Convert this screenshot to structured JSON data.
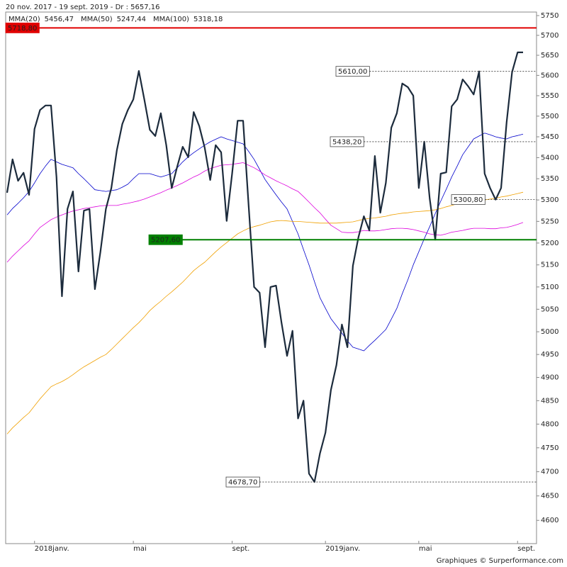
{
  "chart_data": {
    "type": "line",
    "title": "20 nov. 2017 - 19 sept. 2019 - Dr : 5657,16",
    "footer": "Graphiques © Surperformance.com",
    "log": true,
    "ylim": [
      4553,
      5759
    ],
    "yticks": [
      4600,
      4650,
      4700,
      4750,
      4800,
      4850,
      4900,
      4950,
      5000,
      5050,
      5100,
      5150,
      5200,
      5250,
      5300,
      5350,
      5400,
      5450,
      5500,
      5550,
      5600,
      5650,
      5700,
      5750
    ],
    "categories": [
      null,
      null,
      null,
      null,
      null,
      "2018janv.",
      null,
      null,
      null,
      null,
      null,
      null,
      null,
      null,
      null,
      null,
      null,
      null,
      null,
      null,
      null,
      null,
      null,
      "mai",
      null,
      null,
      null,
      null,
      null,
      null,
      null,
      null,
      null,
      null,
      null,
      null,
      null,
      null,
      null,
      null,
      null,
      "sept.",
      null,
      null,
      null,
      null,
      null,
      null,
      null,
      null,
      null,
      null,
      null,
      null,
      null,
      null,
      null,
      null,
      "2019janv.",
      null,
      null,
      null,
      null,
      null,
      null,
      null,
      null,
      null,
      null,
      null,
      null,
      null,
      null,
      null,
      null,
      "mai",
      null,
      null,
      null,
      null,
      null,
      null,
      null,
      null,
      null,
      null,
      null,
      null,
      null,
      null,
      null,
      null,
      null,
      "sept.",
      null
    ],
    "series": [
      {
        "name": "MMA(20)",
        "color": "#0000cc",
        "width": 0.8,
        "legend_value": "5456,47",
        "values": [
          5265,
          5280,
          5292,
          5305,
          5320,
          5340,
          5362,
          5380,
          5396,
          5390,
          5384,
          5380,
          5376,
          5362,
          5350,
          5337,
          5324,
          5322,
          5320,
          5322,
          5324,
          5330,
          5337,
          5350,
          5362,
          5362,
          5362,
          5358,
          5354,
          5358,
          5362,
          5376,
          5390,
          5402,
          5412,
          5421,
          5430,
          5438,
          5444,
          5450,
          5445,
          5441,
          5437,
          5433,
          5415,
          5396,
          5372,
          5348,
          5330,
          5312,
          5295,
          5279,
          5250,
          5221,
          5185,
          5150,
          5112,
          5076,
          5052,
          5029,
          5013,
          4997,
          4980,
          4966,
          4962,
          4958,
          4970,
          4981,
          4993,
          5005,
          5028,
          5052,
          5085,
          5116,
          5150,
          5180,
          5210,
          5238,
          5268,
          5297,
          5325,
          5354,
          5380,
          5407,
          5426,
          5445,
          5452,
          5459,
          5455,
          5450,
          5447,
          5445,
          5450,
          5453,
          5456.47
        ]
      },
      {
        "name": "MMA(50)",
        "color": "#dd00dd",
        "width": 0.8,
        "legend_value": "5247,44",
        "values": [
          5156,
          5170,
          5182,
          5194,
          5205,
          5221,
          5236,
          5245,
          5254,
          5260,
          5265,
          5270,
          5274,
          5277,
          5280,
          5282,
          5284,
          5286,
          5287,
          5287,
          5287,
          5290,
          5292,
          5295,
          5298,
          5302,
          5307,
          5312,
          5317,
          5323,
          5328,
          5334,
          5340,
          5347,
          5354,
          5360,
          5368,
          5374,
          5378,
          5382,
          5383,
          5384,
          5386,
          5388,
          5382,
          5376,
          5368,
          5359,
          5352,
          5345,
          5339,
          5333,
          5326,
          5320,
          5308,
          5295,
          5282,
          5270,
          5255,
          5241,
          5233,
          5225,
          5224,
          5224,
          5226,
          5229,
          5228,
          5228,
          5229,
          5231,
          5233,
          5234,
          5234,
          5233,
          5231,
          5228,
          5225,
          5221,
          5219,
          5218,
          5221,
          5225,
          5227,
          5229,
          5232,
          5234,
          5234,
          5234,
          5233,
          5233,
          5235,
          5236,
          5239,
          5243,
          5247.44
        ]
      },
      {
        "name": "MMA(100)",
        "color": "#f0a000",
        "width": 0.8,
        "legend_value": "5318,18",
        "values": [
          4779,
          4792,
          4803,
          4814,
          4824,
          4839,
          4854,
          4867,
          4880,
          4886,
          4891,
          4898,
          4906,
          4915,
          4923,
          4930,
          4937,
          4944,
          4950,
          4961,
          4973,
          4985,
          4997,
          5009,
          5020,
          5033,
          5047,
          5058,
          5068,
          5079,
          5089,
          5100,
          5111,
          5124,
          5137,
          5147,
          5156,
          5168,
          5180,
          5191,
          5201,
          5211,
          5221,
          5228,
          5234,
          5238,
          5241,
          5245,
          5249,
          5251,
          5252,
          5251,
          5250,
          5250,
          5249,
          5248,
          5247,
          5246,
          5246,
          5246,
          5246,
          5247,
          5248,
          5249,
          5252,
          5255,
          5257,
          5258,
          5260,
          5262,
          5265,
          5267,
          5269,
          5270,
          5272,
          5273,
          5274,
          5275,
          5277,
          5280,
          5284,
          5287,
          5291,
          5293,
          5295,
          5297,
          5298,
          5300,
          5302,
          5304,
          5307,
          5309,
          5312,
          5315,
          5318.18
        ]
      },
      {
        "color": "#1c2b3c",
        "width": 2.2,
        "values": [
          5317,
          5396,
          5345,
          5364,
          5312,
          5469,
          5515,
          5526,
          5526,
          5354,
          5079,
          5279,
          5320,
          5135,
          5275,
          5279,
          5095,
          5180,
          5279,
          5328,
          5418,
          5481,
          5515,
          5541,
          5611,
          5541,
          5467,
          5452,
          5507,
          5430,
          5328,
          5379,
          5426,
          5401,
          5510,
          5476,
          5424,
          5347,
          5430,
          5413,
          5251,
          5362,
          5489,
          5489,
          5287,
          5100,
          5087,
          4966,
          5100,
          5103,
          5020,
          4947,
          5002,
          4812,
          4850,
          4696,
          4678.7,
          4738,
          4782,
          4873,
          4927,
          5016,
          4966,
          5148,
          5213,
          5262,
          5229,
          5404,
          5270,
          5340,
          5472,
          5507,
          5580,
          5571,
          5550,
          5328,
          5438.2,
          5303,
          5207.6,
          5362,
          5365,
          5524,
          5541,
          5590,
          5573,
          5553,
          5610,
          5362,
          5328,
          5300.8,
          5328,
          5485,
          5608,
          5657.16,
          5657.16
        ]
      }
    ],
    "annotations": [
      {
        "value": 5718.8,
        "label": "5718,80",
        "color": "#e00000",
        "style": "solid"
      },
      {
        "value": 5207.6,
        "label": "5207,60",
        "color": "#008000",
        "style": "solid"
      },
      {
        "value": 5610,
        "label": "5610,00",
        "color": "#333333",
        "style": "dotted"
      },
      {
        "value": 5438.2,
        "label": "5438,20",
        "color": "#333333",
        "style": "dotted"
      },
      {
        "value": 5300.8,
        "label": "5300,80",
        "color": "#333333",
        "style": "dotted"
      },
      {
        "value": 4678.7,
        "label": "4678,70",
        "color": "#333333",
        "style": "dotted"
      }
    ]
  }
}
